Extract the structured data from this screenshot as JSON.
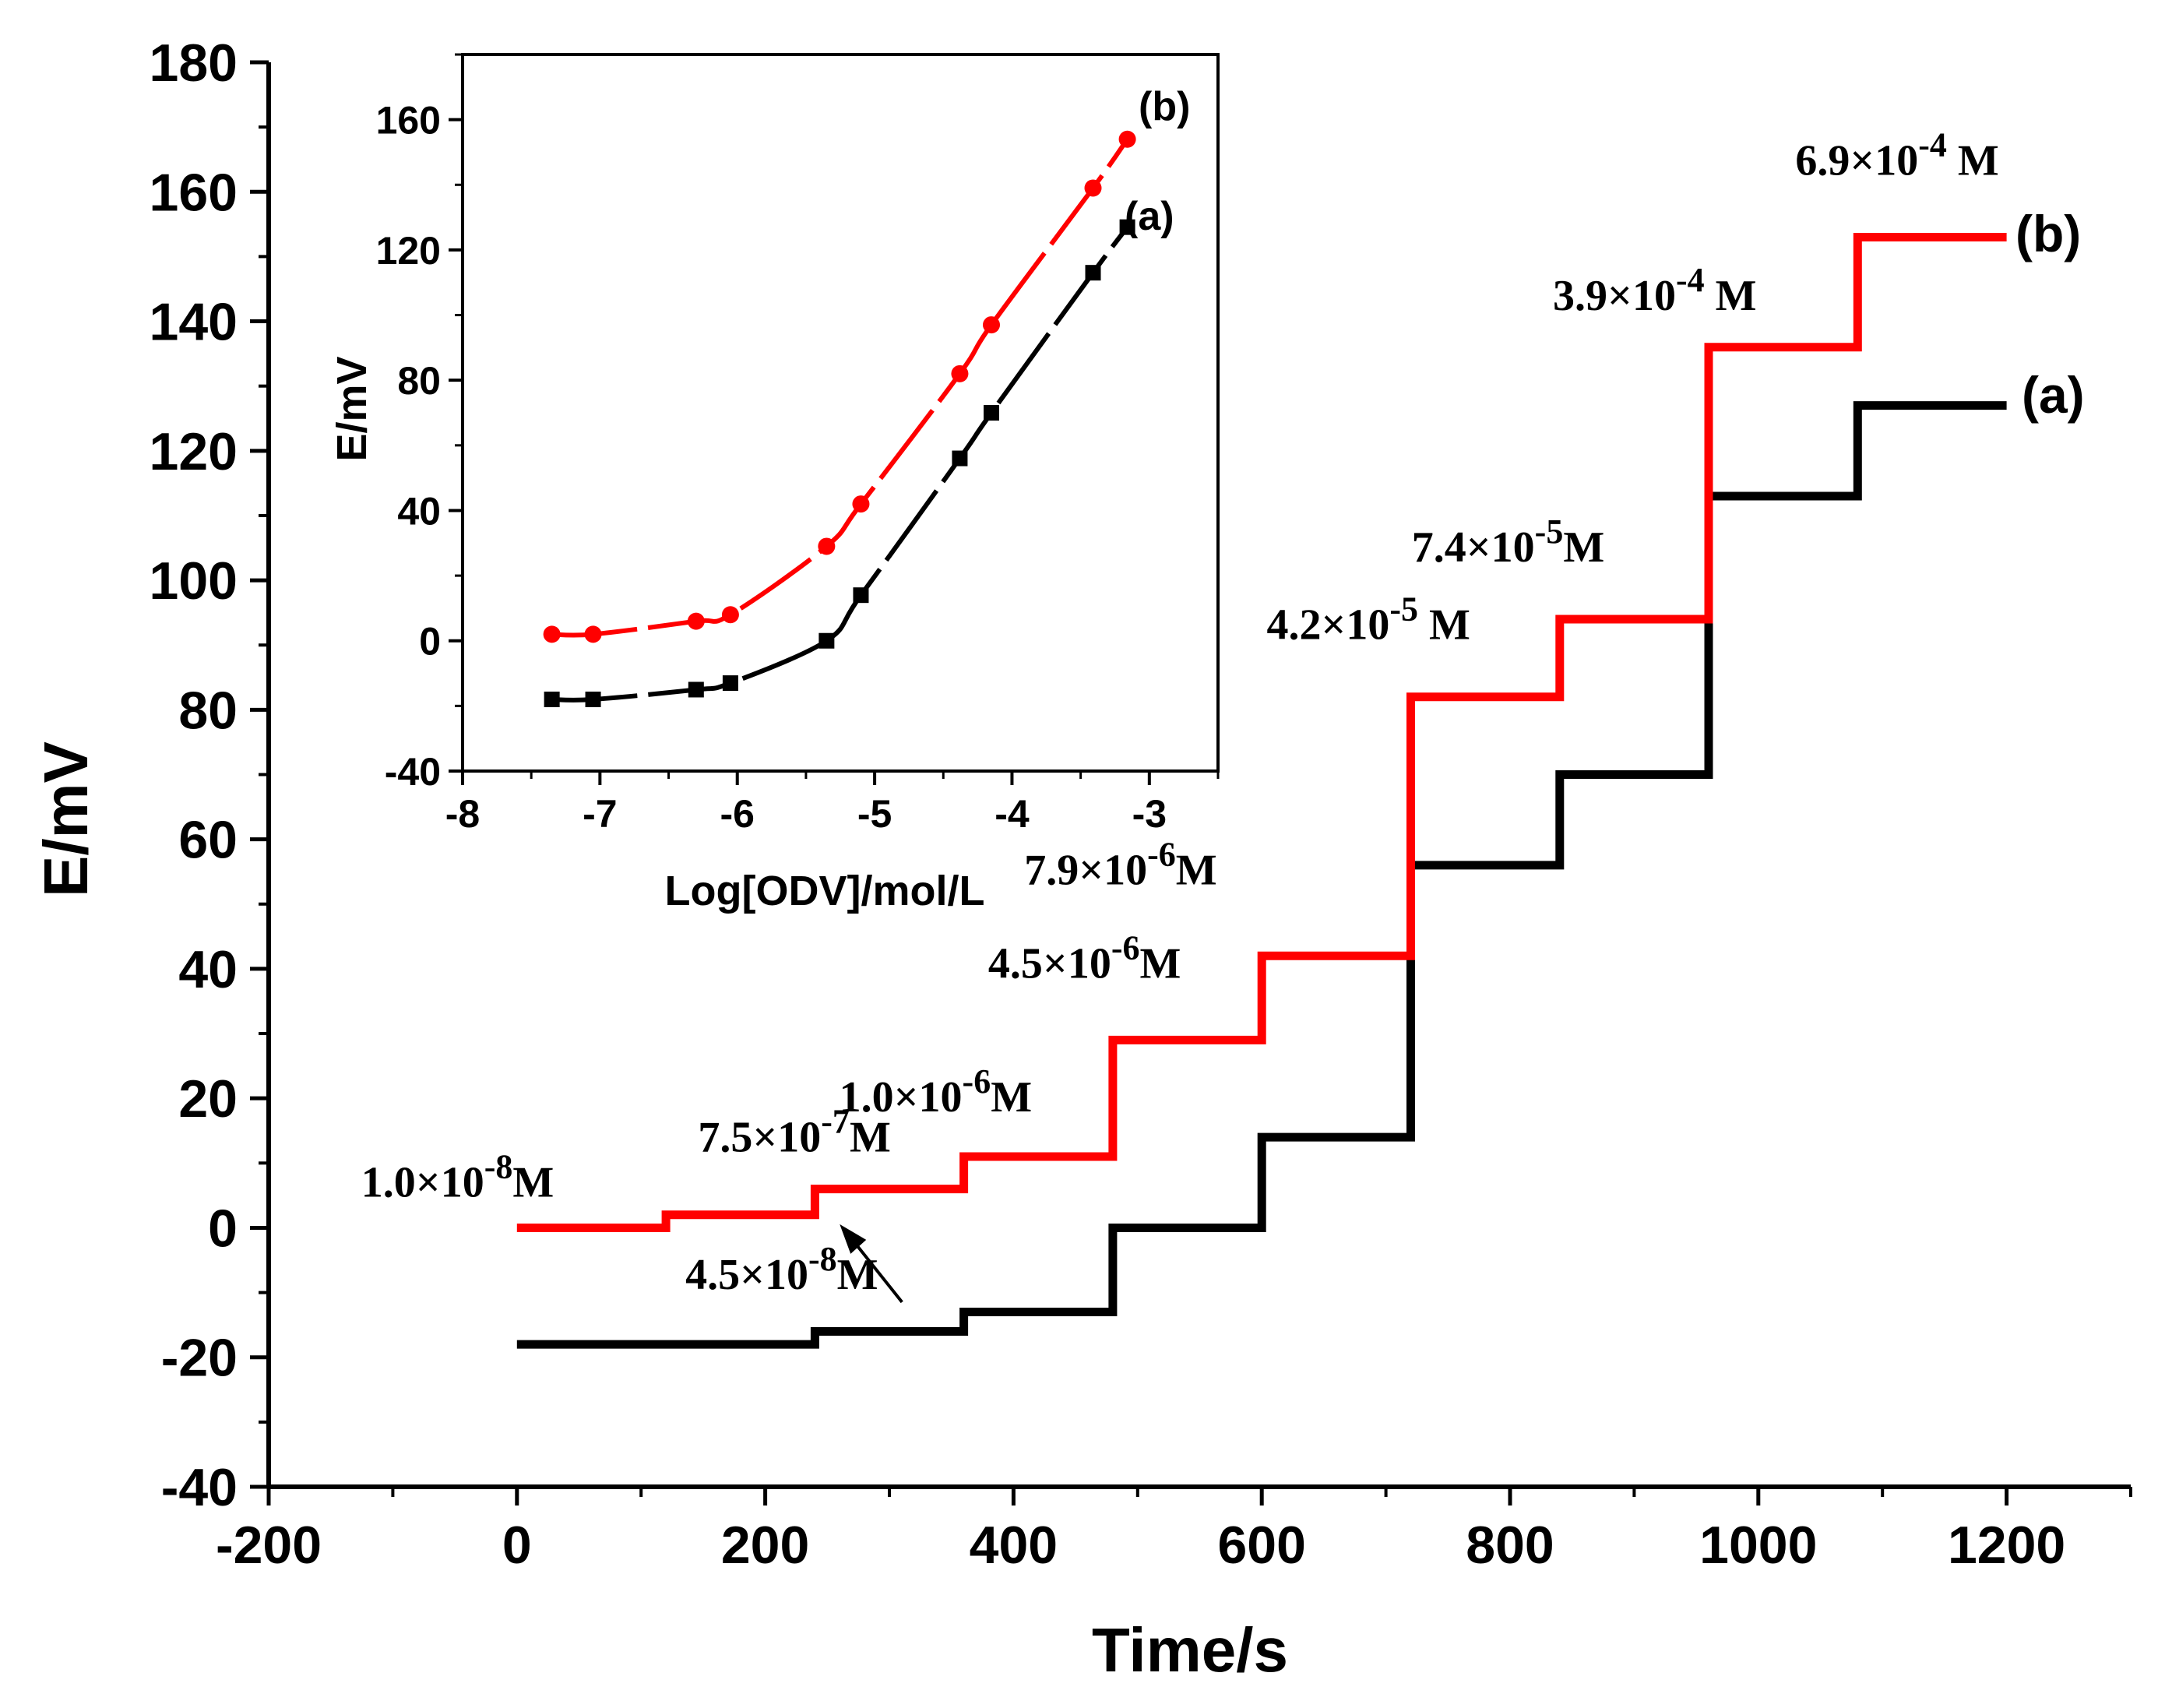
{
  "colors": {
    "series_a": "#000000",
    "series_b": "#ff0000",
    "axis": "#000000",
    "background": "#ffffff"
  },
  "chart_data": [
    {
      "id": "main",
      "type": "line",
      "title": "",
      "xlabel": "Time/s",
      "ylabel": "E/mV",
      "xlim": [
        -200,
        1300
      ],
      "ylim": [
        -40,
        180
      ],
      "xticks": [
        -200,
        0,
        200,
        400,
        600,
        800,
        1000,
        1200
      ],
      "yticks": [
        -40,
        -20,
        0,
        20,
        40,
        60,
        80,
        100,
        120,
        140,
        160,
        180
      ],
      "x_tick_labels": [
        "-200",
        "0",
        "200",
        "400",
        "600",
        "800",
        "1000",
        "1200"
      ],
      "y_tick_labels": [
        "-40",
        "-20",
        "0",
        "20",
        "40",
        "60",
        "80",
        "100",
        "120",
        "140",
        "160",
        "180"
      ],
      "series": [
        {
          "name": "(a)",
          "color": "#000000",
          "step_times": [
            0,
            240,
            360,
            480,
            600,
            720,
            840,
            960,
            1080,
            1200
          ],
          "values": [
            -18,
            -16,
            -13,
            0,
            14,
            56,
            70,
            113,
            127
          ]
        },
        {
          "name": "(b)",
          "color": "#ff0000",
          "step_times": [
            0,
            120,
            240,
            360,
            480,
            600,
            720,
            840,
            960,
            1080,
            1200
          ],
          "values": [
            0,
            2,
            6,
            11,
            29,
            42,
            82,
            94,
            136,
            153
          ]
        }
      ],
      "annotations": [
        {
          "base": "1.0×10",
          "exp": "-8",
          "unit": "M",
          "x": 0,
          "y": 0
        },
        {
          "base": "4.5×10",
          "exp": "-8",
          "unit": "M",
          "x": 120,
          "y": 2,
          "arrow": true
        },
        {
          "base": "7.5×10",
          "exp": "-7",
          "unit": "M",
          "x": 240,
          "y": 6
        },
        {
          "base": "1.0×10",
          "exp": "-6",
          "unit": "M",
          "x": 360,
          "y": 11
        },
        {
          "base": "4.5×10",
          "exp": "-6",
          "unit": "M",
          "x": 480,
          "y": 29
        },
        {
          "base": "7.9×10",
          "exp": "-6",
          "unit": "M",
          "x": 600,
          "y": 42
        },
        {
          "base": "4.2×10",
          "exp": "-5",
          "unit": " M",
          "x": 720,
          "y": 82
        },
        {
          "base": "7.4×10",
          "exp": "-5",
          "unit": "M",
          "x": 840,
          "y": 94
        },
        {
          "base": "3.9×10",
          "exp": "-4",
          "unit": " M",
          "x": 960,
          "y": 136
        },
        {
          "base": "6.9×10",
          "exp": "-4",
          "unit": " M",
          "x": 1080,
          "y": 153
        }
      ]
    },
    {
      "id": "inset",
      "type": "line",
      "title": "",
      "xlabel": "Log[ODV]/mol/L",
      "ylabel": "E/mV",
      "xlim": [
        -8,
        -2.5
      ],
      "ylim": [
        -40,
        180
      ],
      "xticks": [
        -8,
        -7,
        -6,
        -5,
        -4,
        -3
      ],
      "yticks": [
        -40,
        0,
        40,
        80,
        120,
        160
      ],
      "x_tick_labels": [
        "-8",
        "-7",
        "-6",
        "-5",
        "-4",
        "-3"
      ],
      "y_tick_labels": [
        "-40",
        "0",
        "40",
        "80",
        "120",
        "160"
      ],
      "series": [
        {
          "name": "(a)",
          "color": "#000000",
          "marker": "square",
          "x": [
            -7.35,
            -7.05,
            -6.3,
            -6.05,
            -5.35,
            -5.1,
            -4.38,
            -4.15,
            -3.41,
            -3.16
          ],
          "y": [
            -18,
            -18,
            -15,
            -13,
            0,
            14,
            56,
            70,
            113,
            127
          ]
        },
        {
          "name": "(b)",
          "color": "#ff0000",
          "marker": "circle",
          "x": [
            -7.35,
            -7.05,
            -6.3,
            -6.05,
            -5.35,
            -5.1,
            -4.38,
            -4.15,
            -3.41,
            -3.16
          ],
          "y": [
            2,
            2,
            6,
            8,
            29,
            42,
            82,
            97,
            139,
            154
          ]
        }
      ]
    }
  ]
}
